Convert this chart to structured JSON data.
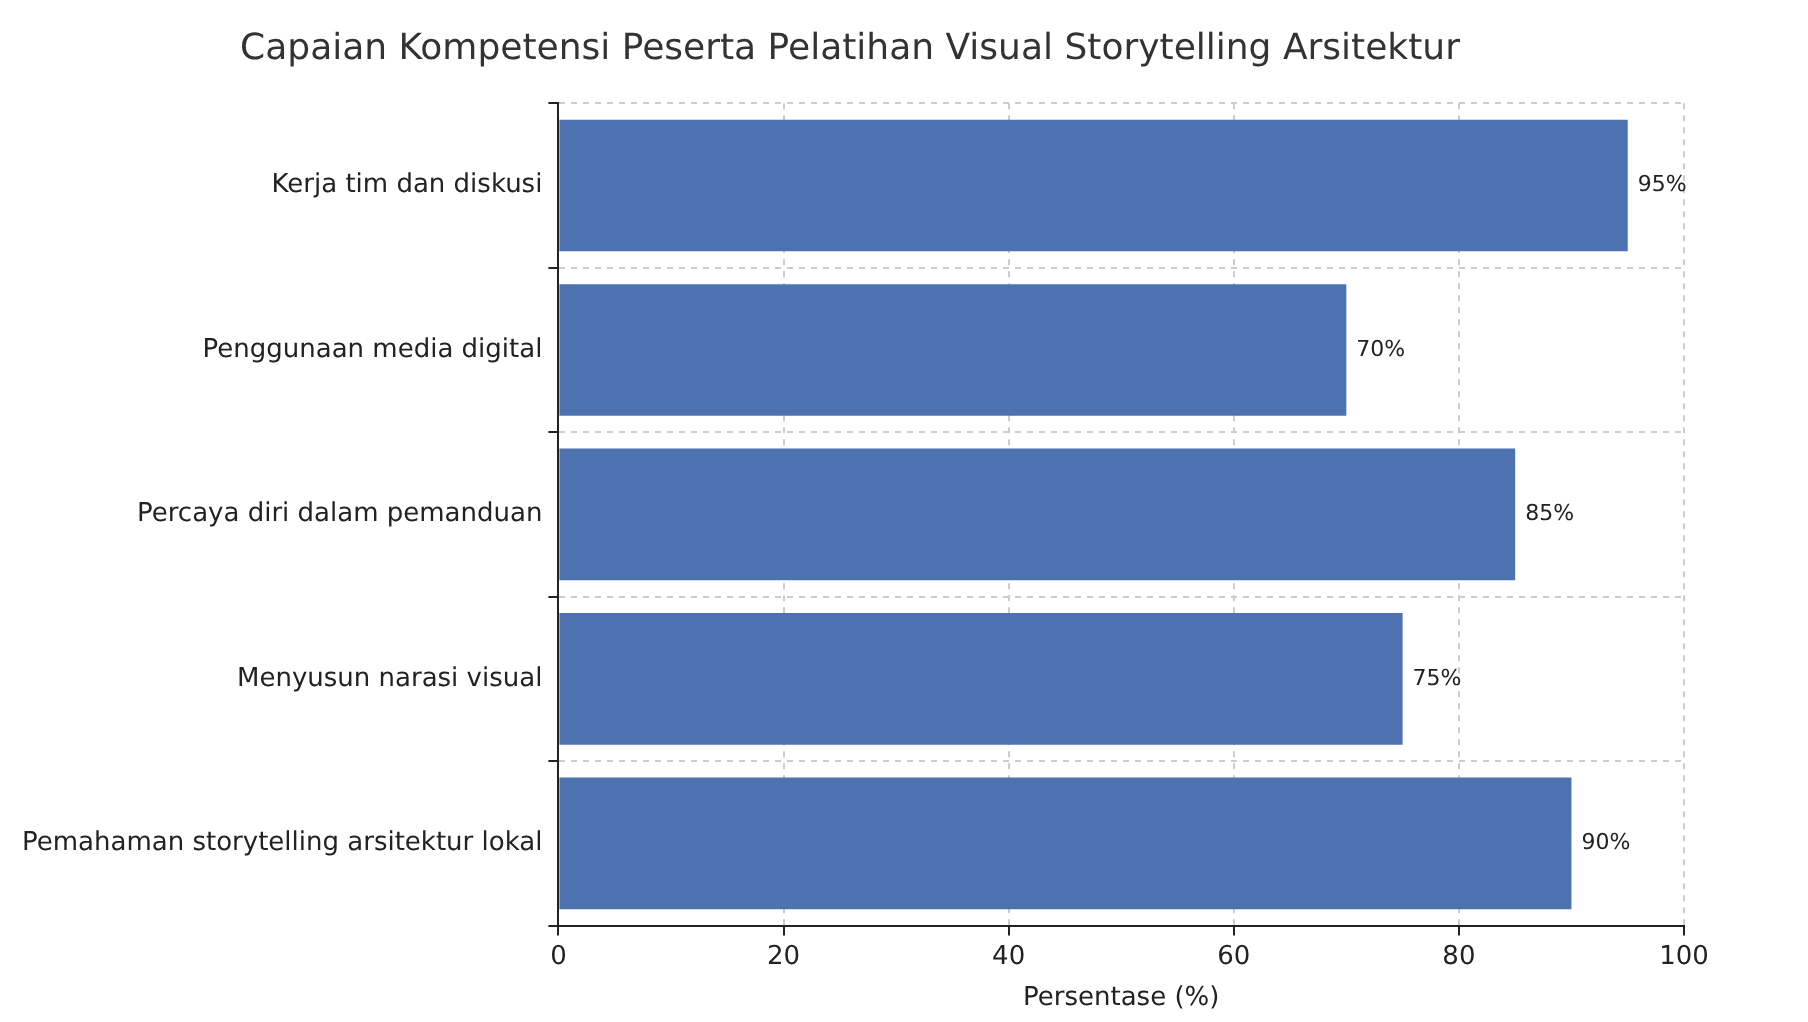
{
  "chart_data": {
    "type": "bar",
    "orientation": "horizontal",
    "title": "Capaian Kompetensi Peserta Pelatihan Visual Storytelling Arsitektur",
    "xlabel": "Persentase (%)",
    "categories": [
      "Kerja tim dan diskusi",
      "Penggunaan media digital",
      "Percaya diri dalam pemanduan",
      "Menyusun narasi visual",
      "Pemahaman storytelling arsitektur lokal"
    ],
    "values": [
      95,
      70,
      85,
      75,
      90
    ],
    "value_labels": [
      "95%",
      "70%",
      "85%",
      "75%",
      "90%"
    ],
    "color": "#4c72b0",
    "xlim": [
      0,
      100
    ],
    "xticks": [
      0,
      20,
      40,
      60,
      80,
      100
    ],
    "grid": true,
    "legend": false
  }
}
